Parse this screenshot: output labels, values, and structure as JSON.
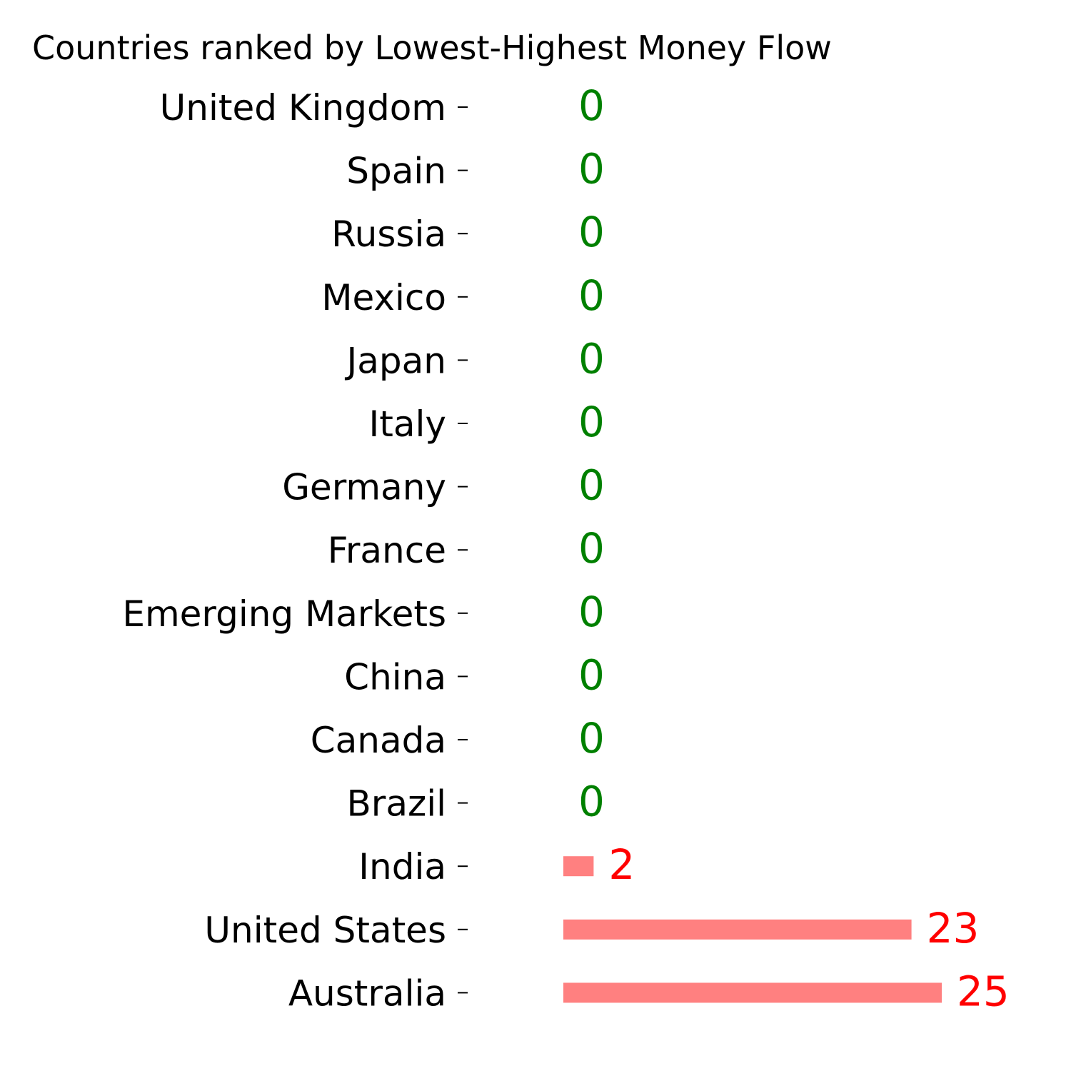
{
  "chart_data": {
    "type": "bar",
    "orientation": "horizontal",
    "title": "Countries ranked by Lowest-Highest Money Flow",
    "xlabel": "",
    "ylabel": "",
    "categories": [
      "United Kingdom",
      "Spain",
      "Russia",
      "Mexico",
      "Japan",
      "Italy",
      "Germany",
      "France",
      "Emerging Markets",
      "China",
      "Canada",
      "Brazil",
      "India",
      "United States",
      "Australia"
    ],
    "values": [
      0,
      0,
      0,
      0,
      0,
      0,
      0,
      0,
      0,
      0,
      0,
      0,
      2,
      23,
      25
    ],
    "value_labels": [
      "0",
      "0",
      "0",
      "0",
      "0",
      "0",
      "0",
      "0",
      "0",
      "0",
      "0",
      "0",
      "2",
      "23",
      "25"
    ],
    "xlim": [
      0,
      25
    ],
    "grid": false,
    "legend": "none",
    "colors": {
      "bar": "#ff8080",
      "zero_label": "#008000",
      "nonzero_label": "#ff0000",
      "text": "#000000"
    }
  }
}
